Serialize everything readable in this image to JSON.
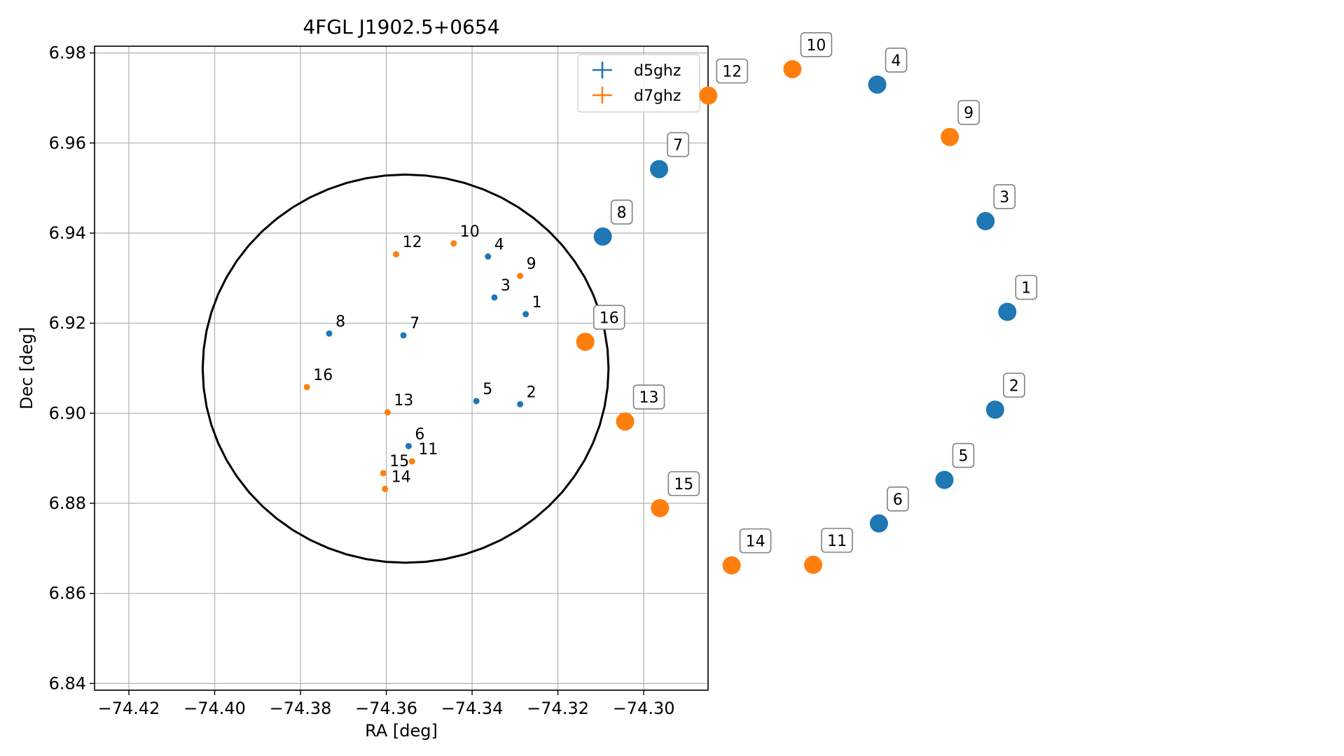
{
  "chart_data": [
    {
      "type": "scatter",
      "title": "4FGL J1902.5+0654",
      "xlabel": "RA [deg]",
      "ylabel": "Dec [deg]",
      "xlim": [
        -74.428,
        -74.285
      ],
      "ylim": [
        6.8385,
        6.9815
      ],
      "x_ticks": [
        "−74.42",
        "−74.40",
        "−74.38",
        "−74.36",
        "−74.34",
        "−74.32",
        "−74.30"
      ],
      "x_tick_values": [
        -74.42,
        -74.4,
        -74.38,
        -74.36,
        -74.34,
        -74.32,
        -74.3
      ],
      "y_ticks": [
        "6.84",
        "6.86",
        "6.88",
        "6.90",
        "6.92",
        "6.94",
        "6.96",
        "6.98"
      ],
      "y_tick_values": [
        6.84,
        6.86,
        6.88,
        6.9,
        6.92,
        6.94,
        6.96,
        6.98
      ],
      "grid": true,
      "legend_position": "top-right",
      "ellipse": {
        "center": [
          -74.3555,
          6.9099
        ],
        "ra_radius": 0.0473,
        "dec_radius": 0.0431,
        "color": "#000000"
      },
      "series": [
        {
          "name": "d5ghz",
          "color": "#1f77b4",
          "points": [
            {
              "id": "1",
              "ra": -74.3275,
              "dec": 6.922
            },
            {
              "id": "2",
              "ra": -74.3288,
              "dec": 6.902
            },
            {
              "id": "3",
              "ra": -74.3348,
              "dec": 6.9257
            },
            {
              "id": "4",
              "ra": -74.3363,
              "dec": 6.9348
            },
            {
              "id": "5",
              "ra": -74.339,
              "dec": 6.9027
            },
            {
              "id": "6",
              "ra": -74.3548,
              "dec": 6.8927
            },
            {
              "id": "7",
              "ra": -74.356,
              "dec": 6.9173
            },
            {
              "id": "8",
              "ra": -74.3733,
              "dec": 6.9177
            }
          ]
        },
        {
          "name": "d7ghz",
          "color": "#ff7f0e",
          "points": [
            {
              "id": "9",
              "ra": -74.3288,
              "dec": 6.9305
            },
            {
              "id": "10",
              "ra": -74.3443,
              "dec": 6.9377
            },
            {
              "id": "11",
              "ra": -74.354,
              "dec": 6.8893
            },
            {
              "id": "12",
              "ra": -74.3577,
              "dec": 6.9353
            },
            {
              "id": "13",
              "ra": -74.3597,
              "dec": 6.9002
            },
            {
              "id": "14",
              "ra": -74.3603,
              "dec": 6.8832
            },
            {
              "id": "15",
              "ra": -74.3607,
              "dec": 6.8867
            },
            {
              "id": "16",
              "ra": -74.3785,
              "dec": 6.9058
            }
          ]
        }
      ]
    },
    {
      "type": "scatter",
      "axes": "off",
      "label_style": "boxed",
      "points": [
        {
          "id": "1",
          "color": "#1f77b4",
          "x": 1.499,
          "y": 0.4125
        },
        {
          "id": "2",
          "color": "#1f77b4",
          "x": 1.4808,
          "y": 0.5419
        },
        {
          "id": "3",
          "color": "#1f77b4",
          "x": 1.4666,
          "y": 0.2925
        },
        {
          "id": "4",
          "color": "#1f77b4",
          "x": 1.3054,
          "y": 0.1119
        },
        {
          "id": "5",
          "color": "#1f77b4",
          "x": 1.4054,
          "y": 0.6348
        },
        {
          "id": "6",
          "color": "#1f77b4",
          "x": 1.3079,
          "y": 0.6924
        },
        {
          "id": "7",
          "color": "#1f77b4",
          "x": 0.9808,
          "y": 0.2237
        },
        {
          "id": "8",
          "color": "#1f77b4",
          "x": 0.897,
          "y": 0.3129
        },
        {
          "id": "9",
          "color": "#ff7f0e",
          "x": 1.4134,
          "y": 0.1812
        },
        {
          "id": "10",
          "color": "#ff7f0e",
          "x": 1.1792,
          "y": 0.0915
        },
        {
          "id": "11",
          "color": "#ff7f0e",
          "x": 1.2101,
          "y": 0.7471
        },
        {
          "id": "12",
          "color": "#ff7f0e",
          "x": 1.054,
          "y": 0.1264
        },
        {
          "id": "13",
          "color": "#ff7f0e",
          "x": 0.9302,
          "y": 0.5576
        },
        {
          "id": "14",
          "color": "#ff7f0e",
          "x": 1.0887,
          "y": 0.7478
        },
        {
          "id": "15",
          "color": "#ff7f0e",
          "x": 0.9821,
          "y": 0.6721
        },
        {
          "id": "16",
          "color": "#ff7f0e",
          "x": 0.871,
          "y": 0.4521
        }
      ]
    }
  ]
}
